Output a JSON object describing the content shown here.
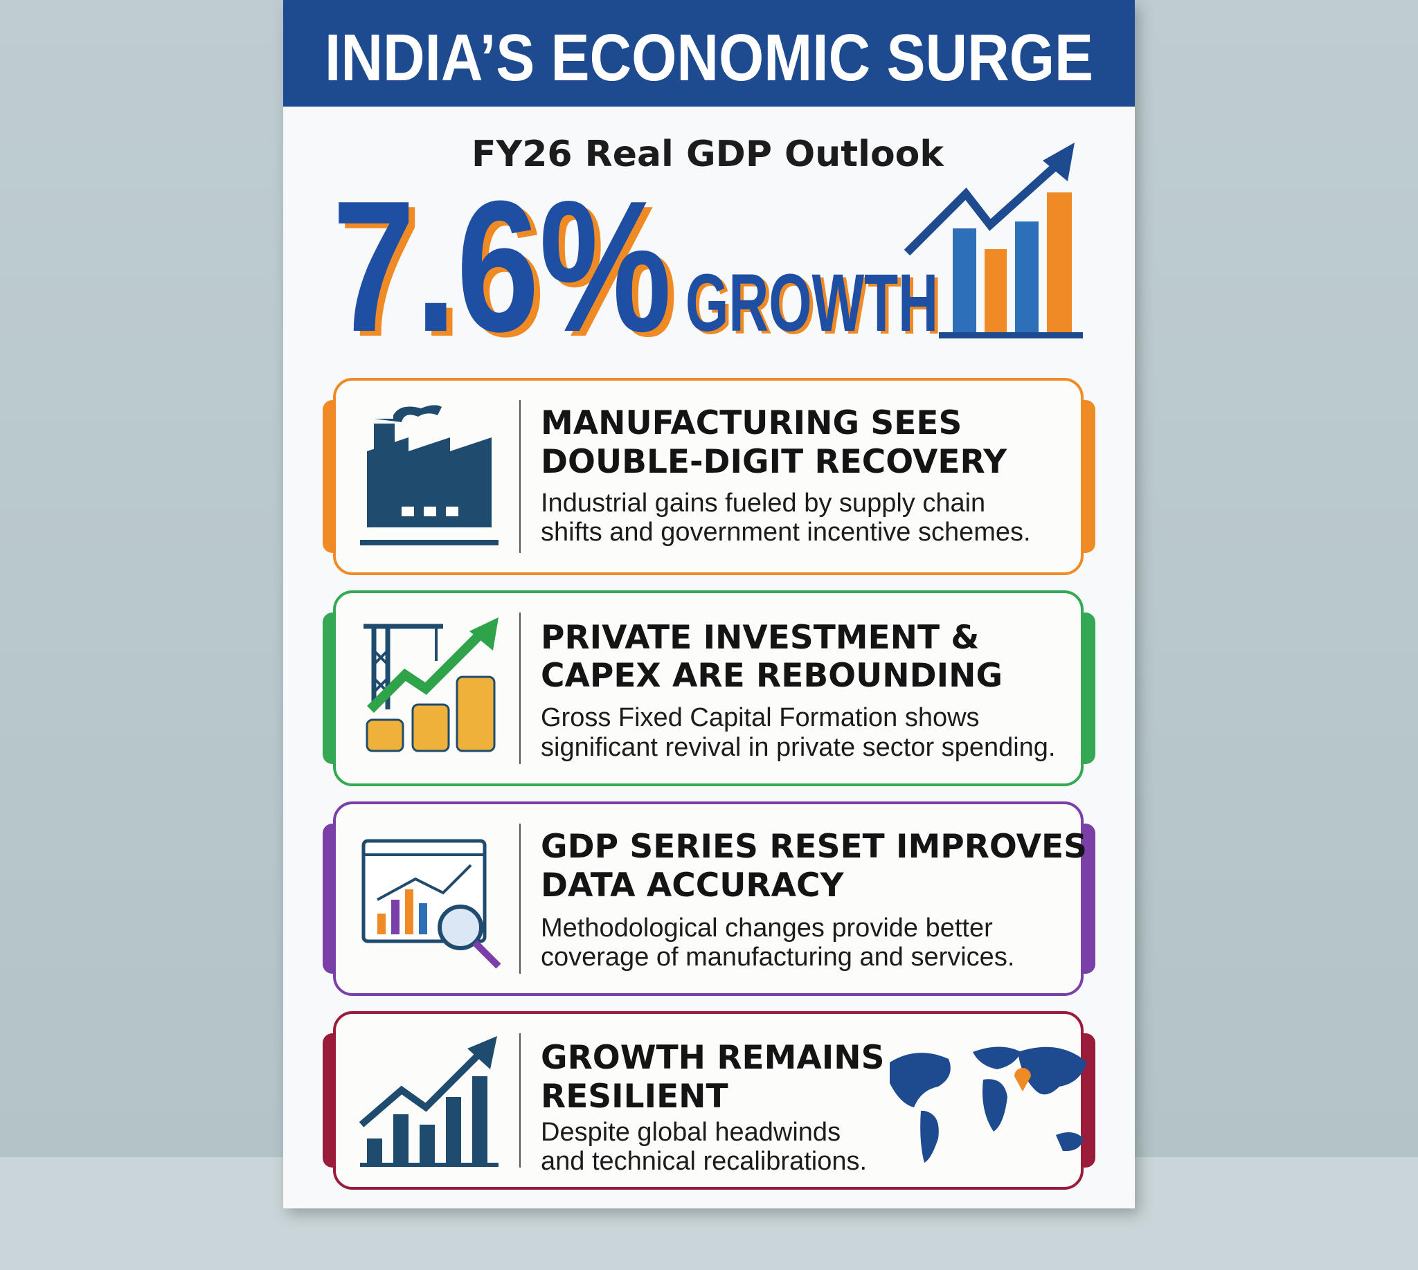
{
  "poster": {
    "title": "INDIA’S ECONOMIC SURGE",
    "subtitle": "FY26 Real GDP Outlook",
    "headline": "7.6%",
    "headline_word": "GROWTH",
    "cards": [
      {
        "heading": [
          "MANUFACTURING SEES",
          "DOUBLE-DIGIT RECOVERY"
        ],
        "body": [
          "Industrial gains fueled by supply chain",
          "shifts and government incentive schemes."
        ]
      },
      {
        "heading": [
          "PRIVATE INVESTMENT &",
          "CAPEX ARE REBOUNDING"
        ],
        "body": [
          "Gross Fixed Capital Formation shows",
          "significant revival in private sector spending."
        ]
      },
      {
        "heading": [
          "GDP SERIES RESET IMPROVES",
          "DATA ACCURACY"
        ],
        "body": [
          "Methodological changes provide better",
          "coverage of manufacturing and services."
        ]
      },
      {
        "heading": [
          "GROWTH REMAINS",
          "RESILIENT"
        ],
        "body": [
          "Despite global headwinds",
          "and technical recalibrations."
        ]
      }
    ]
  }
}
